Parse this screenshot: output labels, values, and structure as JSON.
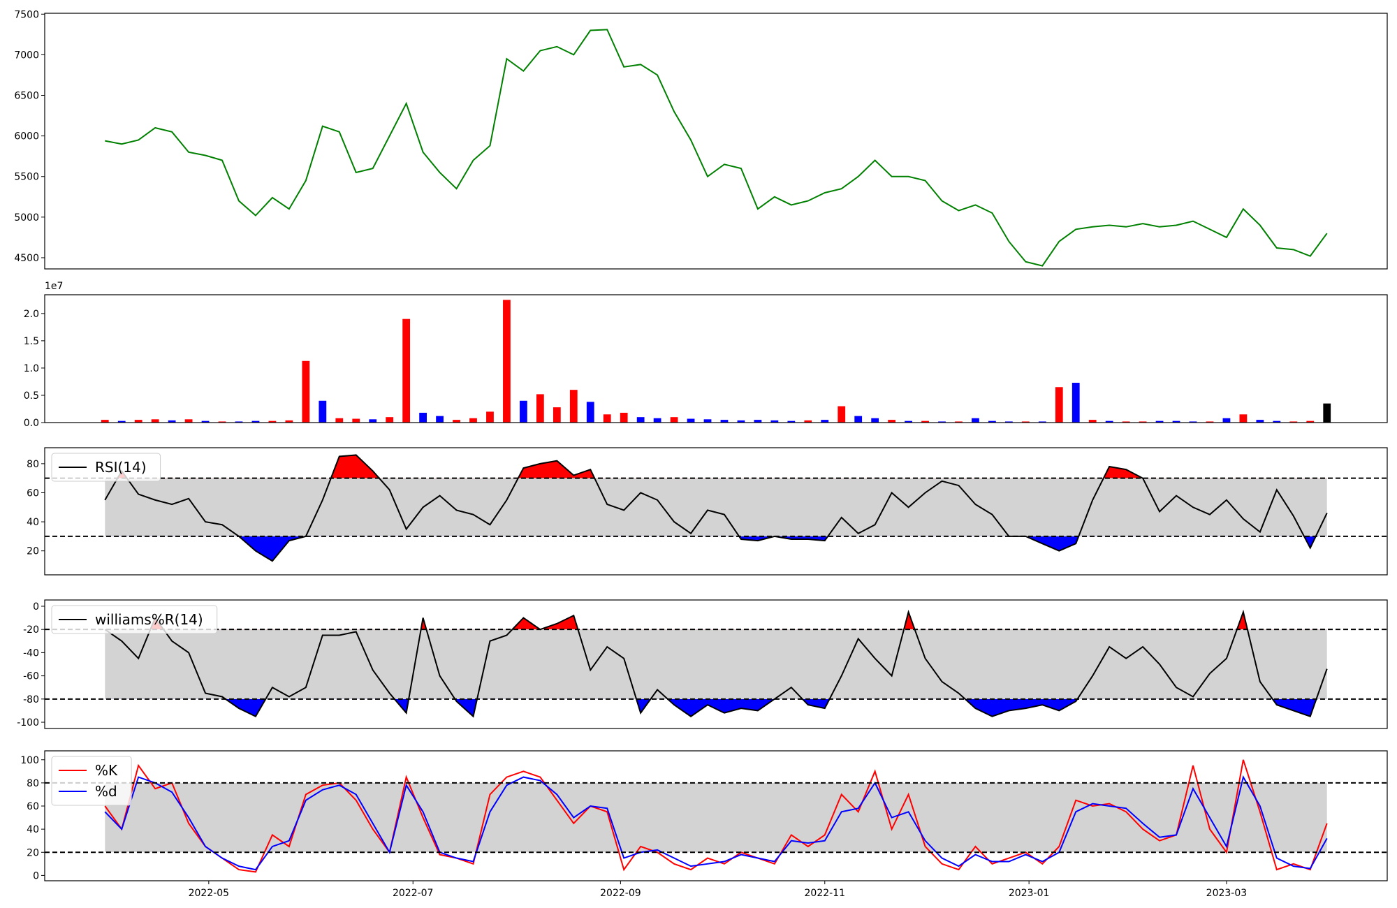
{
  "chart_data": [
    {
      "type": "line",
      "color": "#008000",
      "xlim": [
        -3.6,
        76.6
      ],
      "ylim": [
        4362,
        7511
      ],
      "yticks": [
        4500,
        5000,
        5500,
        6000,
        6500,
        7000,
        7500
      ],
      "values": [
        5940,
        5900,
        5950,
        6100,
        6050,
        5800,
        5760,
        5700,
        5200,
        5020,
        5240,
        5100,
        5450,
        6120,
        6050,
        5550,
        5600,
        6000,
        6400,
        5800,
        5550,
        5350,
        5700,
        5880,
        6950,
        6800,
        7050,
        7100,
        7000,
        7300,
        7310,
        6850,
        6880,
        6750,
        6300,
        5950,
        5500,
        5650,
        5600,
        5100,
        5250,
        5150,
        5200,
        5300,
        5350,
        5500,
        5700,
        5500,
        5500,
        5450,
        5200,
        5080,
        5150,
        5050,
        4700,
        4450,
        4400,
        4700,
        4850,
        4880,
        4900,
        4880,
        4920,
        4880,
        4900,
        4950,
        4850,
        4750,
        5100,
        4900,
        4620,
        4600,
        4520,
        4800
      ]
    },
    {
      "type": "bar",
      "offset_label": "1e7",
      "xlim": [
        -3.6,
        76.6
      ],
      "ylim": [
        0,
        2.344
      ],
      "yticks": [
        {
          "value": 0,
          "label": "0.0"
        },
        0.5,
        {
          "value": 1,
          "label": "1.0"
        },
        1.5,
        {
          "value": 2,
          "label": "2.0"
        }
      ],
      "values": [
        0.05,
        0.03,
        0.05,
        0.06,
        0.04,
        0.06,
        0.03,
        0.02,
        0.02,
        0.03,
        0.03,
        0.04,
        1.13,
        0.4,
        0.08,
        0.07,
        0.06,
        0.1,
        1.9,
        0.18,
        0.12,
        0.05,
        0.08,
        0.2,
        2.25,
        0.4,
        0.52,
        0.28,
        0.6,
        0.38,
        0.15,
        0.18,
        0.1,
        0.08,
        0.1,
        0.07,
        0.06,
        0.05,
        0.04,
        0.05,
        0.04,
        0.03,
        0.04,
        0.05,
        0.3,
        0.12,
        0.08,
        0.05,
        0.03,
        0.03,
        0.02,
        0.02,
        0.08,
        0.03,
        0.02,
        0.02,
        0.02,
        0.65,
        0.73,
        0.05,
        0.03,
        0.02,
        0.02,
        0.03,
        0.03,
        0.02,
        0.02,
        0.08,
        0.15,
        0.05,
        0.03,
        0.02,
        0.03,
        0.35
      ],
      "colors": [
        "#ff0000",
        "#0000ff",
        "#ff0000",
        "#ff0000",
        "#0000ff",
        "#ff0000",
        "#0000ff",
        "#ff0000",
        "#0000ff",
        "#0000ff",
        "#ff0000",
        "#ff0000",
        "#ff0000",
        "#0000ff",
        "#ff0000",
        "#ff0000",
        "#0000ff",
        "#ff0000",
        "#ff0000",
        "#0000ff",
        "#0000ff",
        "#ff0000",
        "#ff0000",
        "#ff0000",
        "#ff0000",
        "#0000ff",
        "#ff0000",
        "#ff0000",
        "#ff0000",
        "#0000ff",
        "#ff0000",
        "#ff0000",
        "#0000ff",
        "#0000ff",
        "#ff0000",
        "#0000ff",
        "#0000ff",
        "#0000ff",
        "#0000ff",
        "#0000ff",
        "#0000ff",
        "#0000ff",
        "#ff0000",
        "#0000ff",
        "#ff0000",
        "#0000ff",
        "#0000ff",
        "#ff0000",
        "#0000ff",
        "#ff0000",
        "#0000ff",
        "#ff0000",
        "#0000ff",
        "#0000ff",
        "#0000ff",
        "#ff0000",
        "#0000ff",
        "#ff0000",
        "#0000ff",
        "#ff0000",
        "#0000ff",
        "#ff0000",
        "#ff0000",
        "#0000ff",
        "#0000ff",
        "#0000ff",
        "#ff0000",
        "#0000ff",
        "#ff0000",
        "#0000ff",
        "#0000ff",
        "#ff0000",
        "#ff0000",
        "#000000"
      ]
    },
    {
      "type": "line",
      "legend": "upper left",
      "xlim": [
        -3.6,
        76.6
      ],
      "ylim": [
        3.5,
        91
      ],
      "yticks": [
        20,
        40,
        60,
        80
      ],
      "levels": [
        30,
        70
      ],
      "band_color": "#d3d3d3",
      "above_color": "#ff0000",
      "below_color": "#0000ff",
      "series": [
        {
          "name": "RSI(14)",
          "color": "#000000",
          "values": [
            55,
            75,
            59,
            55,
            52,
            56,
            40,
            38,
            30,
            20,
            13,
            27,
            30,
            55,
            85,
            86,
            75,
            62,
            35,
            50,
            58,
            48,
            45,
            38,
            55,
            77,
            80,
            82,
            72,
            76,
            52,
            48,
            60,
            55,
            40,
            32,
            48,
            45,
            28,
            27,
            30,
            28,
            28,
            27,
            43,
            32,
            38,
            60,
            50,
            60,
            68,
            65,
            52,
            45,
            30,
            30,
            25,
            20,
            25,
            55,
            78,
            76,
            70,
            47,
            58,
            50,
            45,
            55,
            42,
            33,
            62,
            44,
            22,
            46
          ]
        }
      ]
    },
    {
      "type": "line",
      "legend": "upper left",
      "xlim": [
        -3.6,
        76.6
      ],
      "ylim": [
        -105.4,
        5.4
      ],
      "yticks": [
        -100,
        -80,
        -60,
        -40,
        -20,
        0
      ],
      "levels": [
        -80,
        -20
      ],
      "band_color": "#d3d3d3",
      "above_color": "#ff0000",
      "below_color": "#0000ff",
      "series": [
        {
          "name": "williams%R(14)",
          "color": "#000000",
          "values": [
            -20,
            -30,
            -45,
            -10,
            -30,
            -40,
            -75,
            -78,
            -88,
            -95,
            -70,
            -78,
            -70,
            -25,
            -25,
            -22,
            -55,
            -75,
            -92,
            -10,
            -60,
            -82,
            -95,
            -30,
            -25,
            -10,
            -20,
            -15,
            -8,
            -55,
            -35,
            -45,
            -92,
            -72,
            -85,
            -95,
            -85,
            -92,
            -88,
            -90,
            -80,
            -70,
            -85,
            -88,
            -60,
            -28,
            -45,
            -60,
            -5,
            -45,
            -65,
            -75,
            -88,
            -95,
            -90,
            -88,
            -85,
            -90,
            -82,
            -60,
            -35,
            -45,
            -35,
            -50,
            -70,
            -78,
            -58,
            -45,
            -5,
            -65,
            -85,
            -90,
            -95,
            -54
          ]
        }
      ]
    },
    {
      "type": "line",
      "legend": "upper left",
      "xlim": [
        -3.6,
        76.6
      ],
      "ylim": [
        -4.6,
        107.7
      ],
      "yticks": [
        0,
        20,
        40,
        60,
        80,
        100
      ],
      "levels": [
        20,
        80
      ],
      "band_color": "#d3d3d3",
      "xticks": [
        {
          "value": 6.2,
          "label": "2022-05"
        },
        {
          "value": 18.4,
          "label": "2022-07"
        },
        {
          "value": 30.8,
          "label": "2022-09"
        },
        {
          "value": 43,
          "label": "2022-11"
        },
        {
          "value": 55.2,
          "label": "2023-01"
        },
        {
          "value": 67,
          "label": "2023-03"
        }
      ],
      "series": [
        {
          "name": "%K",
          "color": "#ff0000",
          "values": [
            60,
            40,
            95,
            75,
            80,
            45,
            25,
            15,
            5,
            3,
            35,
            25,
            70,
            78,
            80,
            65,
            40,
            20,
            85,
            50,
            18,
            15,
            10,
            70,
            85,
            90,
            85,
            65,
            45,
            60,
            55,
            5,
            25,
            20,
            10,
            5,
            15,
            10,
            20,
            15,
            10,
            35,
            25,
            35,
            70,
            55,
            90,
            40,
            70,
            25,
            10,
            5,
            25,
            10,
            15,
            20,
            10,
            25,
            65,
            60,
            62,
            55,
            40,
            30,
            35,
            95,
            40,
            20,
            100,
            55,
            5,
            10,
            5,
            45
          ]
        },
        {
          "name": "%d",
          "color": "#0000ff",
          "values": [
            55,
            40,
            85,
            80,
            72,
            50,
            25,
            15,
            8,
            5,
            25,
            30,
            65,
            74,
            78,
            70,
            45,
            20,
            78,
            55,
            20,
            15,
            12,
            55,
            78,
            85,
            82,
            70,
            50,
            60,
            58,
            15,
            20,
            22,
            15,
            8,
            10,
            12,
            18,
            15,
            12,
            30,
            28,
            30,
            55,
            58,
            80,
            50,
            55,
            30,
            15,
            8,
            18,
            12,
            12,
            18,
            12,
            20,
            55,
            62,
            60,
            58,
            45,
            33,
            35,
            75,
            50,
            25,
            85,
            60,
            15,
            8,
            6,
            32
          ]
        }
      ]
    }
  ]
}
